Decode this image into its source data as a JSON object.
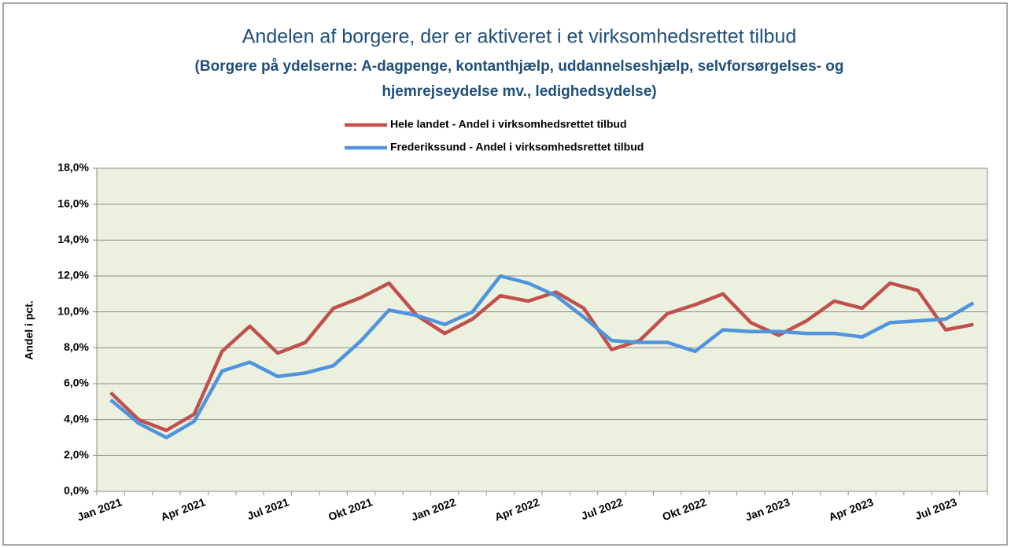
{
  "chart_data": {
    "type": "line",
    "title": "Andelen af borgere, der er aktiveret i et virksomhedsrettet tilbud",
    "subtitle": [
      "(Borgere på ydelserne: A-dagpenge, kontanthjælp, uddannelseshjælp, selvforsørgelses- og",
      "hjemrejseydelse mv., ledighedsydelse)"
    ],
    "ylabel": "Andel i pct.",
    "categories": [
      "Jan 2021",
      null,
      null,
      "Apr 2021",
      null,
      null,
      "Jul 2021",
      null,
      null,
      "Okt 2021",
      null,
      null,
      "Jan 2022",
      null,
      null,
      "Apr 2022",
      null,
      null,
      "Jul 2022",
      null,
      null,
      "Okt 2022",
      null,
      null,
      "Jan 2023",
      null,
      null,
      "Apr 2023",
      null,
      null,
      "Jul 2023",
      null
    ],
    "series": [
      {
        "name": "Hele landet - Andel i virksomhedsrettet tilbud",
        "color": "#c0504d",
        "values": [
          5.5,
          4.0,
          3.4,
          4.3,
          7.8,
          9.2,
          7.7,
          8.3,
          10.2,
          10.8,
          11.6,
          9.8,
          8.8,
          9.6,
          10.9,
          10.6,
          11.1,
          10.2,
          7.9,
          8.4,
          9.9,
          10.4,
          11.0,
          9.4,
          8.7,
          9.5,
          10.6,
          10.2,
          11.6,
          11.2,
          9.0,
          9.3
        ]
      },
      {
        "name": "Frederikssund - Andel i virksomhedsrettet tilbud",
        "color": "#4f94dc",
        "values": [
          5.1,
          3.8,
          3.0,
          3.9,
          6.7,
          7.2,
          6.4,
          6.6,
          7.0,
          8.4,
          10.1,
          9.8,
          9.3,
          10.0,
          12.0,
          11.6,
          10.9,
          9.7,
          8.4,
          8.3,
          8.3,
          7.8,
          9.0,
          8.9,
          8.9,
          8.8,
          8.8,
          8.6,
          9.4,
          9.5,
          9.6,
          10.5
        ]
      }
    ],
    "ylim": [
      0,
      18
    ],
    "yticks": [
      {
        "value": 0,
        "label": "0,0%"
      },
      {
        "value": 2,
        "label": "2,0%"
      },
      {
        "value": 4,
        "label": "4,0%"
      },
      {
        "value": 6,
        "label": "6,0%"
      },
      {
        "value": 8,
        "label": "8,0%"
      },
      {
        "value": 10,
        "label": "10,0%"
      },
      {
        "value": 12,
        "label": "12,0%"
      },
      {
        "value": 14,
        "label": "14,0%"
      },
      {
        "value": 16,
        "label": "16,0%"
      },
      {
        "value": 18,
        "label": "18,0%"
      }
    ],
    "grid": true,
    "plot_background": "#ebf1de"
  }
}
